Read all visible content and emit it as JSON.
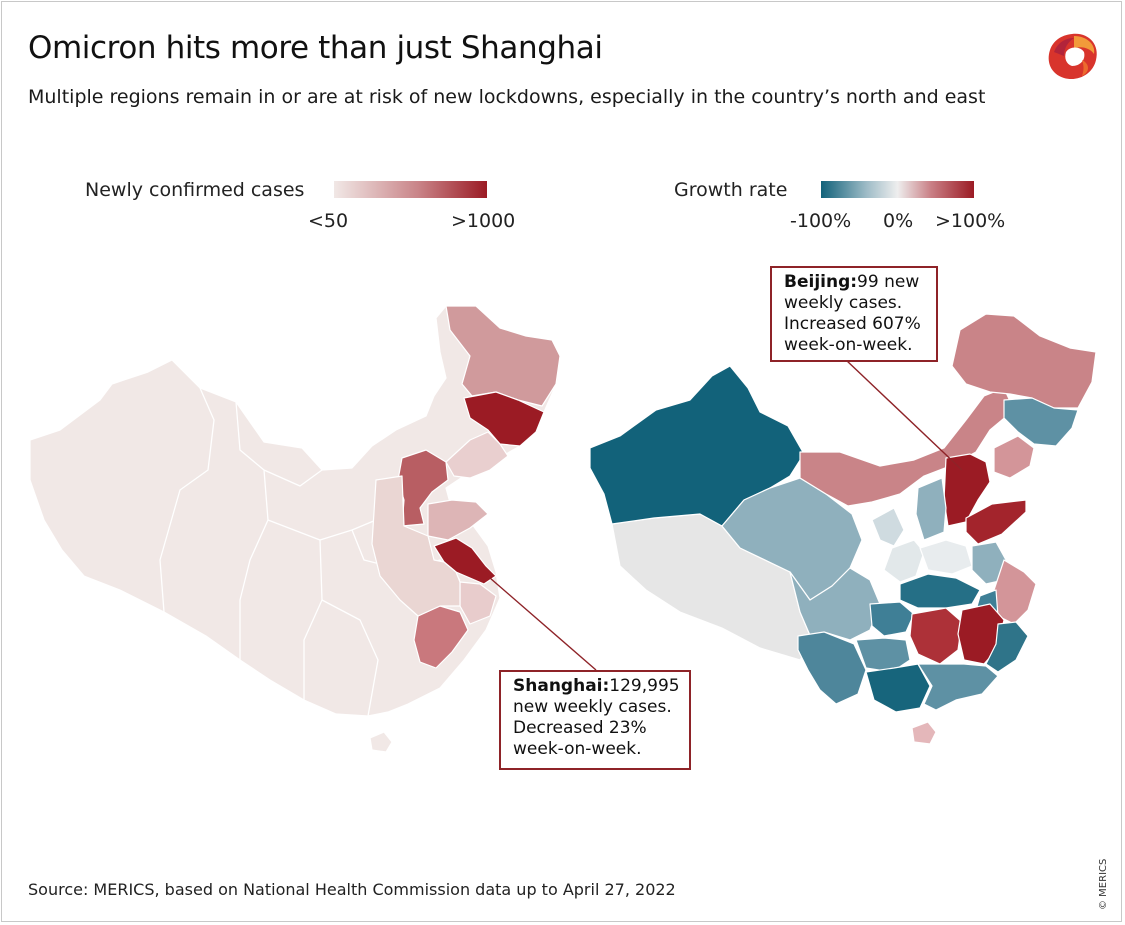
{
  "title": "Omicron hits more than just Shanghai",
  "subtitle": "Multiple regions remain in or are at risk of new lockdowns, especially in the country’s north and east",
  "legends": {
    "cases": {
      "title": "Newly confirmed cases",
      "min_label": "<50",
      "max_label": ">1000",
      "colors": [
        "#f1e8e6",
        "#c98488",
        "#9b1b24"
      ]
    },
    "growth": {
      "title": "Growth rate",
      "min_label": "-100%",
      "mid_label": "0%",
      "max_label": ">100%",
      "colors": [
        "#12627a",
        "#9fbcc7",
        "#eeeeee",
        "#c97f85",
        "#9b1b24"
      ]
    }
  },
  "callouts": {
    "shanghai": {
      "name": "Shanghai:",
      "text": "129,995 new weekly cases. Decreased 23% week-on-week."
    },
    "beijing": {
      "name": "Beijing:",
      "text": "99 new weekly cases. Increased 607% week-on-week."
    }
  },
  "source": "Source: MERICS, based on National Health Commission data up to April 27, 2022",
  "copyright": "© MERICS",
  "logo_icon": "merics-logo-icon"
}
